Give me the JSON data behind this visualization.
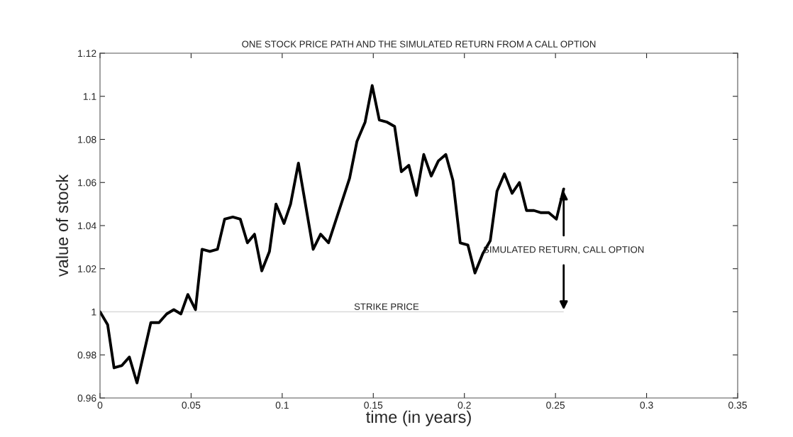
{
  "chart_data": {
    "type": "line",
    "title": "ONE STOCK PRICE PATH AND THE SIMULATED RETURN FROM A CALL OPTION",
    "xlabel": "time (in years)",
    "ylabel": "value of stock",
    "x": [
      0,
      0.0042,
      0.0077,
      0.0119,
      0.0161,
      0.0203,
      0.0279,
      0.0324,
      0.0366,
      0.0405,
      0.0444,
      0.0482,
      0.0524,
      0.056,
      0.0603,
      0.0645,
      0.0684,
      0.0729,
      0.077,
      0.0809,
      0.0848,
      0.0888,
      0.093,
      0.0966,
      0.101,
      0.1046,
      0.1089,
      0.117,
      0.1211,
      0.1254,
      0.137,
      0.141,
      0.1455,
      0.1494,
      0.1533,
      0.1576,
      0.1617,
      0.1654,
      0.1695,
      0.1737,
      0.1777,
      0.1818,
      0.1857,
      0.1898,
      0.1937,
      0.1977,
      0.2019,
      0.2058,
      0.2101,
      0.2142,
      0.2179,
      0.222,
      0.2262,
      0.2302,
      0.2341,
      0.2382,
      0.2421,
      0.2463,
      0.2505,
      0.2545
    ],
    "series": [
      {
        "color": "#000000",
        "values": [
          1.0,
          0.994,
          0.974,
          0.975,
          0.979,
          0.967,
          0.995,
          0.995,
          0.999,
          1.001,
          0.999,
          1.008,
          1.001,
          1.029,
          1.028,
          1.029,
          1.043,
          1.044,
          1.043,
          1.032,
          1.036,
          1.019,
          1.028,
          1.05,
          1.041,
          1.05,
          1.069,
          1.029,
          1.036,
          1.032,
          1.062,
          1.079,
          1.088,
          1.105,
          1.089,
          1.088,
          1.086,
          1.065,
          1.068,
          1.054,
          1.073,
          1.063,
          1.07,
          1.073,
          1.061,
          1.032,
          1.031,
          1.018,
          1.027,
          1.033,
          1.056,
          1.064,
          1.055,
          1.06,
          1.047,
          1.047,
          1.046,
          1.046,
          1.043,
          1.057
        ]
      }
    ],
    "xlim": [
      0,
      0.35
    ],
    "xticks": [
      0,
      0.05,
      0.1,
      0.15,
      0.2,
      0.25,
      0.3,
      0.35
    ],
    "ylim": [
      0.96,
      1.12
    ],
    "yticks": [
      0.96,
      0.98,
      {
        "value": 1,
        "label": "1"
      },
      1.02,
      1.04,
      1.06,
      1.08,
      {
        "value": 1.1,
        "label": "1.1"
      },
      1.12
    ],
    "ref_lines": [
      {
        "axis": "y",
        "value": 1,
        "label": "STRIKE PRICE",
        "color": "#d9d9d9"
      }
    ],
    "annotations": [
      {
        "text": "SIMULATED RETURN, CALL OPTION",
        "x": 0.2545,
        "y": 1.057
      }
    ],
    "grid": false,
    "legend": false,
    "marker": "none",
    "line_style": "solid"
  }
}
